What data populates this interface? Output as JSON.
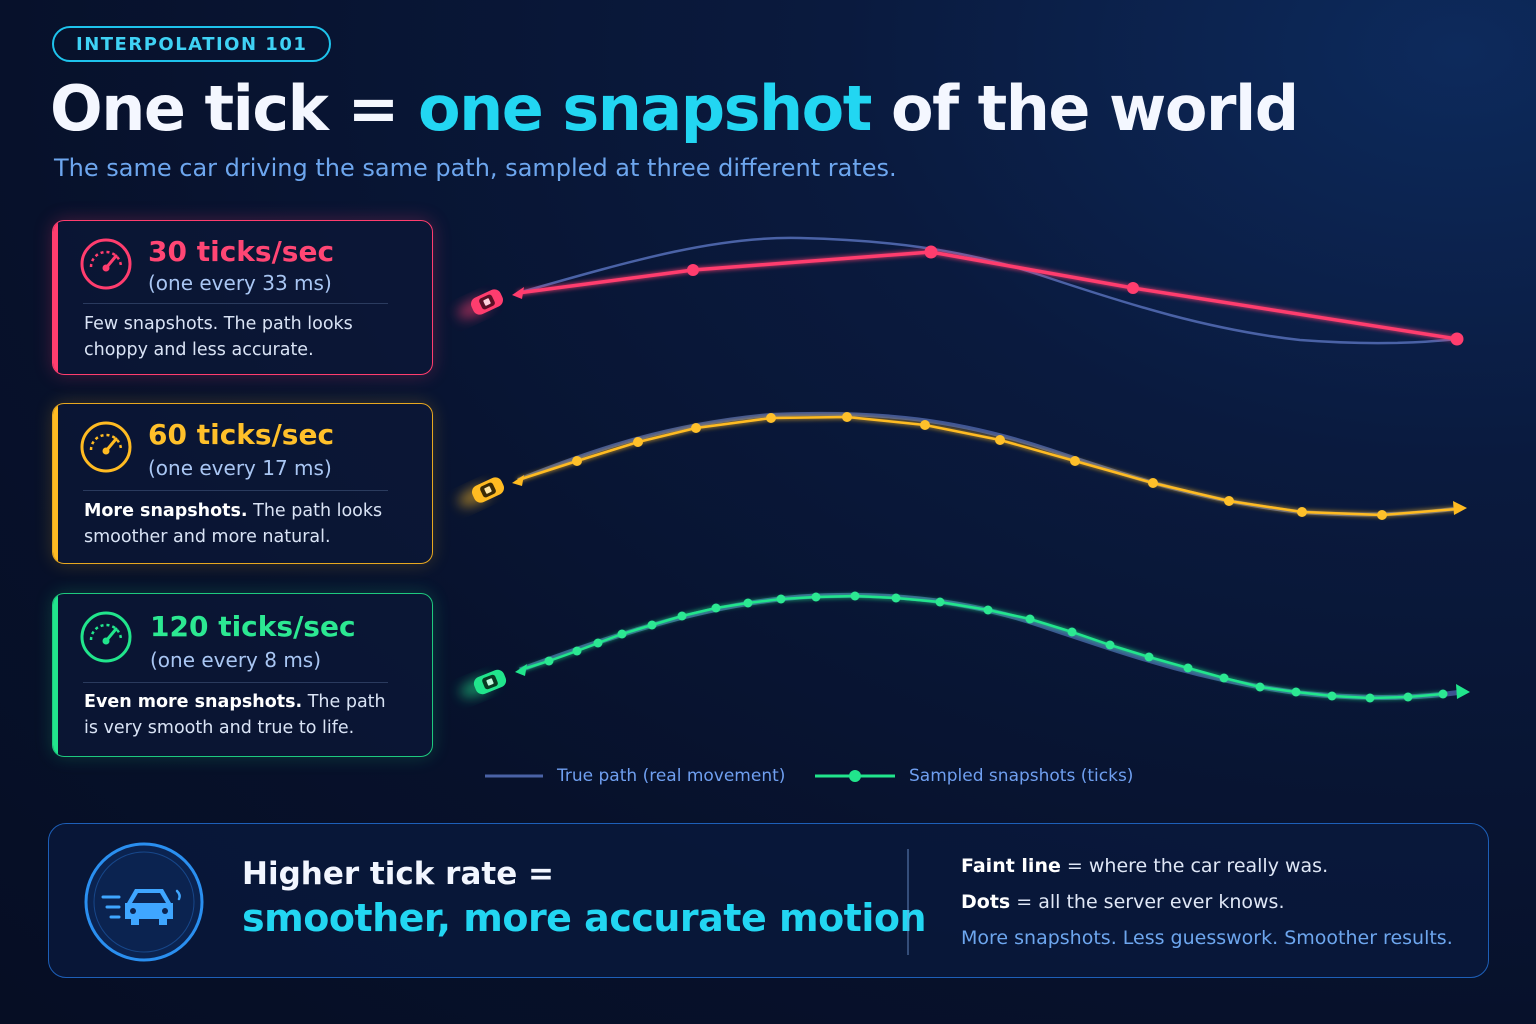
{
  "badge": "INTERPOLATION 101",
  "title": {
    "prefix": "One tick = ",
    "accent": "one snapshot",
    "suffix": " of the world"
  },
  "subtitle": "The same car driving the same path, sampled at three different rates.",
  "colors": {
    "red": "#ff3d6e",
    "yellow": "#ffbb22",
    "green": "#21e58c",
    "cyan": "#22d6f2",
    "true_path": "#4a62a6"
  },
  "cards": [
    {
      "rate": "30 ticks/sec",
      "interval": "(one every 33 ms)",
      "desc_bold": "",
      "desc": "Few snapshots. The path looks choppy and less accurate.",
      "icon": "speedometer-icon"
    },
    {
      "rate": "60 ticks/sec",
      "interval": "(one every 17 ms)",
      "desc_bold": "More snapshots.",
      "desc": " The path looks smoother and more natural.",
      "icon": "speedometer-icon"
    },
    {
      "rate": "120 ticks/sec",
      "interval": "(one every 8 ms)",
      "desc_bold": "Even more snapshots.",
      "desc": " The path is very smooth and true to life.",
      "icon": "speedometer-icon"
    }
  ],
  "legend": {
    "true_path": "True path (real movement)",
    "samples": "Sampled snapshots (ticks)"
  },
  "summary": {
    "line1": "Higher tick rate =",
    "line2": "smoother, more accurate motion",
    "note1_bold": "Faint line",
    "note1": " = where the car really was.",
    "note2_bold": "Dots",
    "note2": " = all the server ever knows.",
    "note3": "More snapshots. Less guesswork. Smoother results.",
    "icon": "car-speed-icon"
  }
}
